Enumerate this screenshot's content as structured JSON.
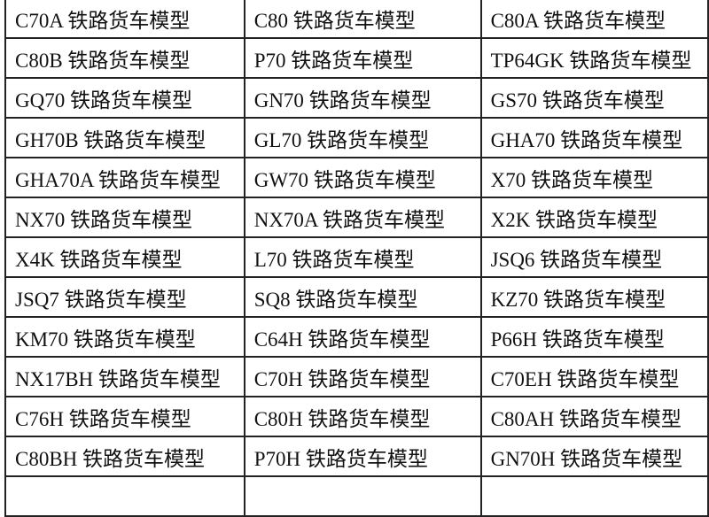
{
  "rows": [
    [
      "C70A 铁路货车模型",
      "C80 铁路货车模型",
      "C80A 铁路货车模型"
    ],
    [
      "C80B 铁路货车模型",
      "P70 铁路货车模型",
      "TP64GK 铁路货车模型"
    ],
    [
      "GQ70 铁路货车模型",
      "GN70 铁路货车模型",
      "GS70 铁路货车模型"
    ],
    [
      "GH70B 铁路货车模型",
      "GL70 铁路货车模型",
      "GHA70 铁路货车模型"
    ],
    [
      "GHA70A 铁路货车模型",
      "GW70 铁路货车模型",
      "X70 铁路货车模型"
    ],
    [
      "NX70 铁路货车模型",
      "NX70A 铁路货车模型",
      "X2K 铁路货车模型"
    ],
    [
      "X4K 铁路货车模型",
      "L70 铁路货车模型",
      "JSQ6 铁路货车模型"
    ],
    [
      "JSQ7 铁路货车模型",
      "SQ8 铁路货车模型",
      "KZ70 铁路货车模型"
    ],
    [
      "KM70 铁路货车模型",
      "C64H 铁路货车模型",
      "P66H 铁路货车模型"
    ],
    [
      "NX17BH 铁路货车模型",
      "C70H 铁路货车模型",
      "C70EH 铁路货车模型"
    ],
    [
      "C76H 铁路货车模型",
      "C80H 铁路货车模型",
      "C80AH 铁路货车模型"
    ],
    [
      "C80BH 铁路货车模型",
      "P70H 铁路货车模型",
      "GN70H 铁路货车模型"
    ]
  ]
}
